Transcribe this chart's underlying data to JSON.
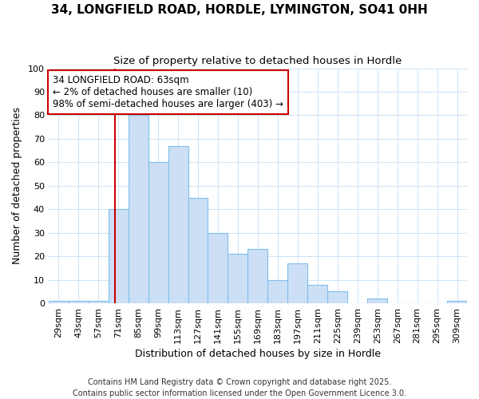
{
  "title_line1": "34, LONGFIELD ROAD, HORDLE, LYMINGTON, SO41 0HH",
  "title_line2": "Size of property relative to detached houses in Hordle",
  "xlabel": "Distribution of detached houses by size in Hordle",
  "ylabel": "Number of detached properties",
  "bar_color": "#ccdff5",
  "bar_edge_color": "#7fbfee",
  "background_color": "#ffffff",
  "grid_color": "#d0e4f7",
  "categories": [
    "29sqm",
    "43sqm",
    "57sqm",
    "71sqm",
    "85sqm",
    "99sqm",
    "113sqm",
    "127sqm",
    "141sqm",
    "155sqm",
    "169sqm",
    "183sqm",
    "197sqm",
    "211sqm",
    "225sqm",
    "239sqm",
    "253sqm",
    "267sqm",
    "281sqm",
    "295sqm",
    "309sqm"
  ],
  "values": [
    1,
    1,
    1,
    40,
    80,
    60,
    67,
    45,
    30,
    21,
    23,
    10,
    17,
    8,
    5,
    0,
    2,
    0,
    0,
    0,
    1
  ],
  "red_line_x": 2.85,
  "annotation_text": "34 LONGFIELD ROAD: 63sqm\n← 2% of detached houses are smaller (10)\n98% of semi-detached houses are larger (403) →",
  "annotation_box_color": "#ffffff",
  "annotation_border_color": "#cc0000",
  "ylim": [
    0,
    100
  ],
  "yticks": [
    0,
    10,
    20,
    30,
    40,
    50,
    60,
    70,
    80,
    90,
    100
  ],
  "footer_text": "Contains HM Land Registry data © Crown copyright and database right 2025.\nContains public sector information licensed under the Open Government Licence 3.0.",
  "title_fontsize": 11,
  "subtitle_fontsize": 9.5,
  "axis_label_fontsize": 9,
  "tick_fontsize": 8,
  "footer_fontsize": 7,
  "annot_fontsize": 8.5
}
